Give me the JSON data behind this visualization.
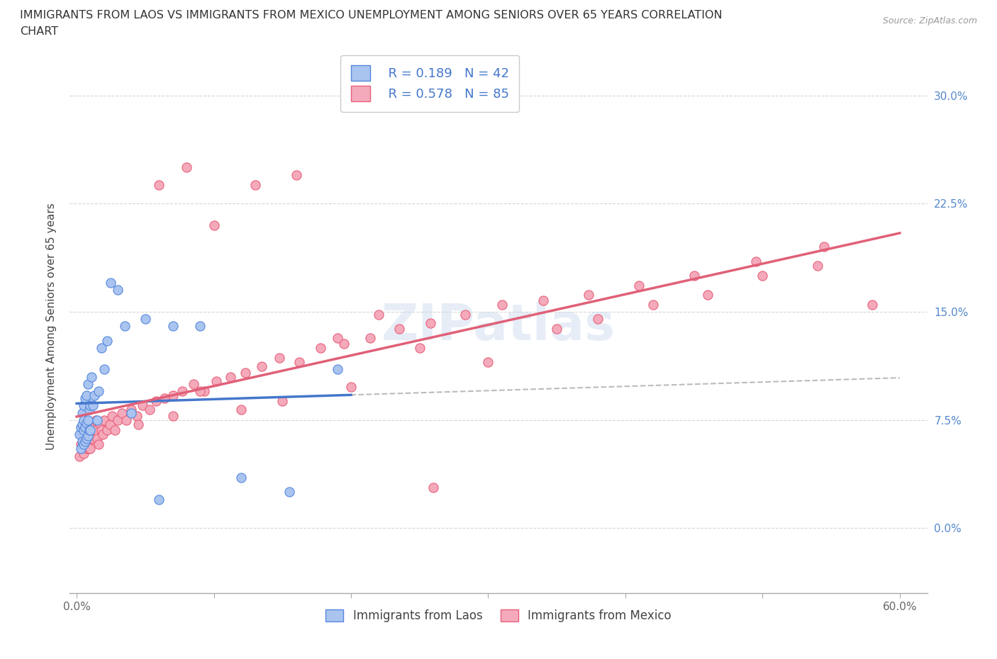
{
  "title_line1": "IMMIGRANTS FROM LAOS VS IMMIGRANTS FROM MEXICO UNEMPLOYMENT AMONG SENIORS OVER 65 YEARS CORRELATION",
  "title_line2": "CHART",
  "source": "Source: ZipAtlas.com",
  "ylabel": "Unemployment Among Seniors over 65 years",
  "laos_R": 0.189,
  "laos_N": 42,
  "mexico_R": 0.578,
  "mexico_N": 85,
  "laos_color": "#aac4f0",
  "mexico_color": "#f4aabb",
  "laos_line_color": "#5588dd",
  "mexico_line_color": "#e8607a",
  "laos_trend_color": "#4477cc",
  "mexico_trend_color": "#e06078",
  "watermark": "ZIPatlas",
  "xlim": [
    -0.005,
    0.62
  ],
  "ylim": [
    -0.045,
    0.325
  ],
  "yticks": [
    0.0,
    0.075,
    0.15,
    0.225,
    0.3
  ],
  "xticks": [
    0.0,
    0.1,
    0.2,
    0.3,
    0.4,
    0.5,
    0.6
  ],
  "laos_x": [
    0.002,
    0.003,
    0.003,
    0.004,
    0.004,
    0.004,
    0.005,
    0.005,
    0.005,
    0.005,
    0.006,
    0.006,
    0.006,
    0.007,
    0.007,
    0.007,
    0.008,
    0.008,
    0.008,
    0.009,
    0.009,
    0.01,
    0.01,
    0.011,
    0.012,
    0.013,
    0.015,
    0.016,
    0.018,
    0.02,
    0.022,
    0.025,
    0.03,
    0.035,
    0.04,
    0.05,
    0.06,
    0.07,
    0.09,
    0.12,
    0.155,
    0.19
  ],
  "laos_y": [
    0.065,
    0.055,
    0.07,
    0.06,
    0.072,
    0.08,
    0.058,
    0.068,
    0.075,
    0.085,
    0.06,
    0.07,
    0.09,
    0.062,
    0.073,
    0.092,
    0.064,
    0.075,
    0.1,
    0.068,
    0.082,
    0.068,
    0.085,
    0.105,
    0.085,
    0.092,
    0.075,
    0.095,
    0.125,
    0.11,
    0.13,
    0.17,
    0.165,
    0.14,
    0.08,
    0.145,
    0.02,
    0.14,
    0.14,
    0.035,
    0.025,
    0.11
  ],
  "mexico_x": [
    0.002,
    0.003,
    0.004,
    0.004,
    0.005,
    0.005,
    0.006,
    0.006,
    0.007,
    0.007,
    0.008,
    0.008,
    0.009,
    0.009,
    0.01,
    0.01,
    0.011,
    0.012,
    0.013,
    0.014,
    0.015,
    0.016,
    0.017,
    0.018,
    0.019,
    0.02,
    0.022,
    0.024,
    0.026,
    0.028,
    0.03,
    0.033,
    0.036,
    0.04,
    0.044,
    0.048,
    0.053,
    0.058,
    0.064,
    0.07,
    0.077,
    0.085,
    0.093,
    0.102,
    0.112,
    0.123,
    0.135,
    0.148,
    0.162,
    0.178,
    0.195,
    0.214,
    0.235,
    0.258,
    0.283,
    0.31,
    0.34,
    0.373,
    0.41,
    0.45,
    0.495,
    0.545,
    0.38,
    0.42,
    0.46,
    0.5,
    0.54,
    0.58,
    0.35,
    0.3,
    0.25,
    0.2,
    0.15,
    0.12,
    0.09,
    0.07,
    0.045,
    0.06,
    0.08,
    0.1,
    0.13,
    0.16,
    0.19,
    0.22,
    0.26
  ],
  "mexico_y": [
    0.05,
    0.058,
    0.055,
    0.068,
    0.052,
    0.063,
    0.058,
    0.072,
    0.055,
    0.068,
    0.058,
    0.072,
    0.055,
    0.068,
    0.055,
    0.072,
    0.065,
    0.062,
    0.068,
    0.075,
    0.062,
    0.058,
    0.072,
    0.068,
    0.065,
    0.075,
    0.068,
    0.072,
    0.078,
    0.068,
    0.075,
    0.08,
    0.075,
    0.082,
    0.078,
    0.085,
    0.082,
    0.088,
    0.09,
    0.092,
    0.095,
    0.1,
    0.095,
    0.102,
    0.105,
    0.108,
    0.112,
    0.118,
    0.115,
    0.125,
    0.128,
    0.132,
    0.138,
    0.142,
    0.148,
    0.155,
    0.158,
    0.162,
    0.168,
    0.175,
    0.185,
    0.195,
    0.145,
    0.155,
    0.162,
    0.175,
    0.182,
    0.155,
    0.138,
    0.115,
    0.125,
    0.098,
    0.088,
    0.082,
    0.095,
    0.078,
    0.072,
    0.238,
    0.25,
    0.21,
    0.238,
    0.245,
    0.132,
    0.148,
    0.028
  ]
}
